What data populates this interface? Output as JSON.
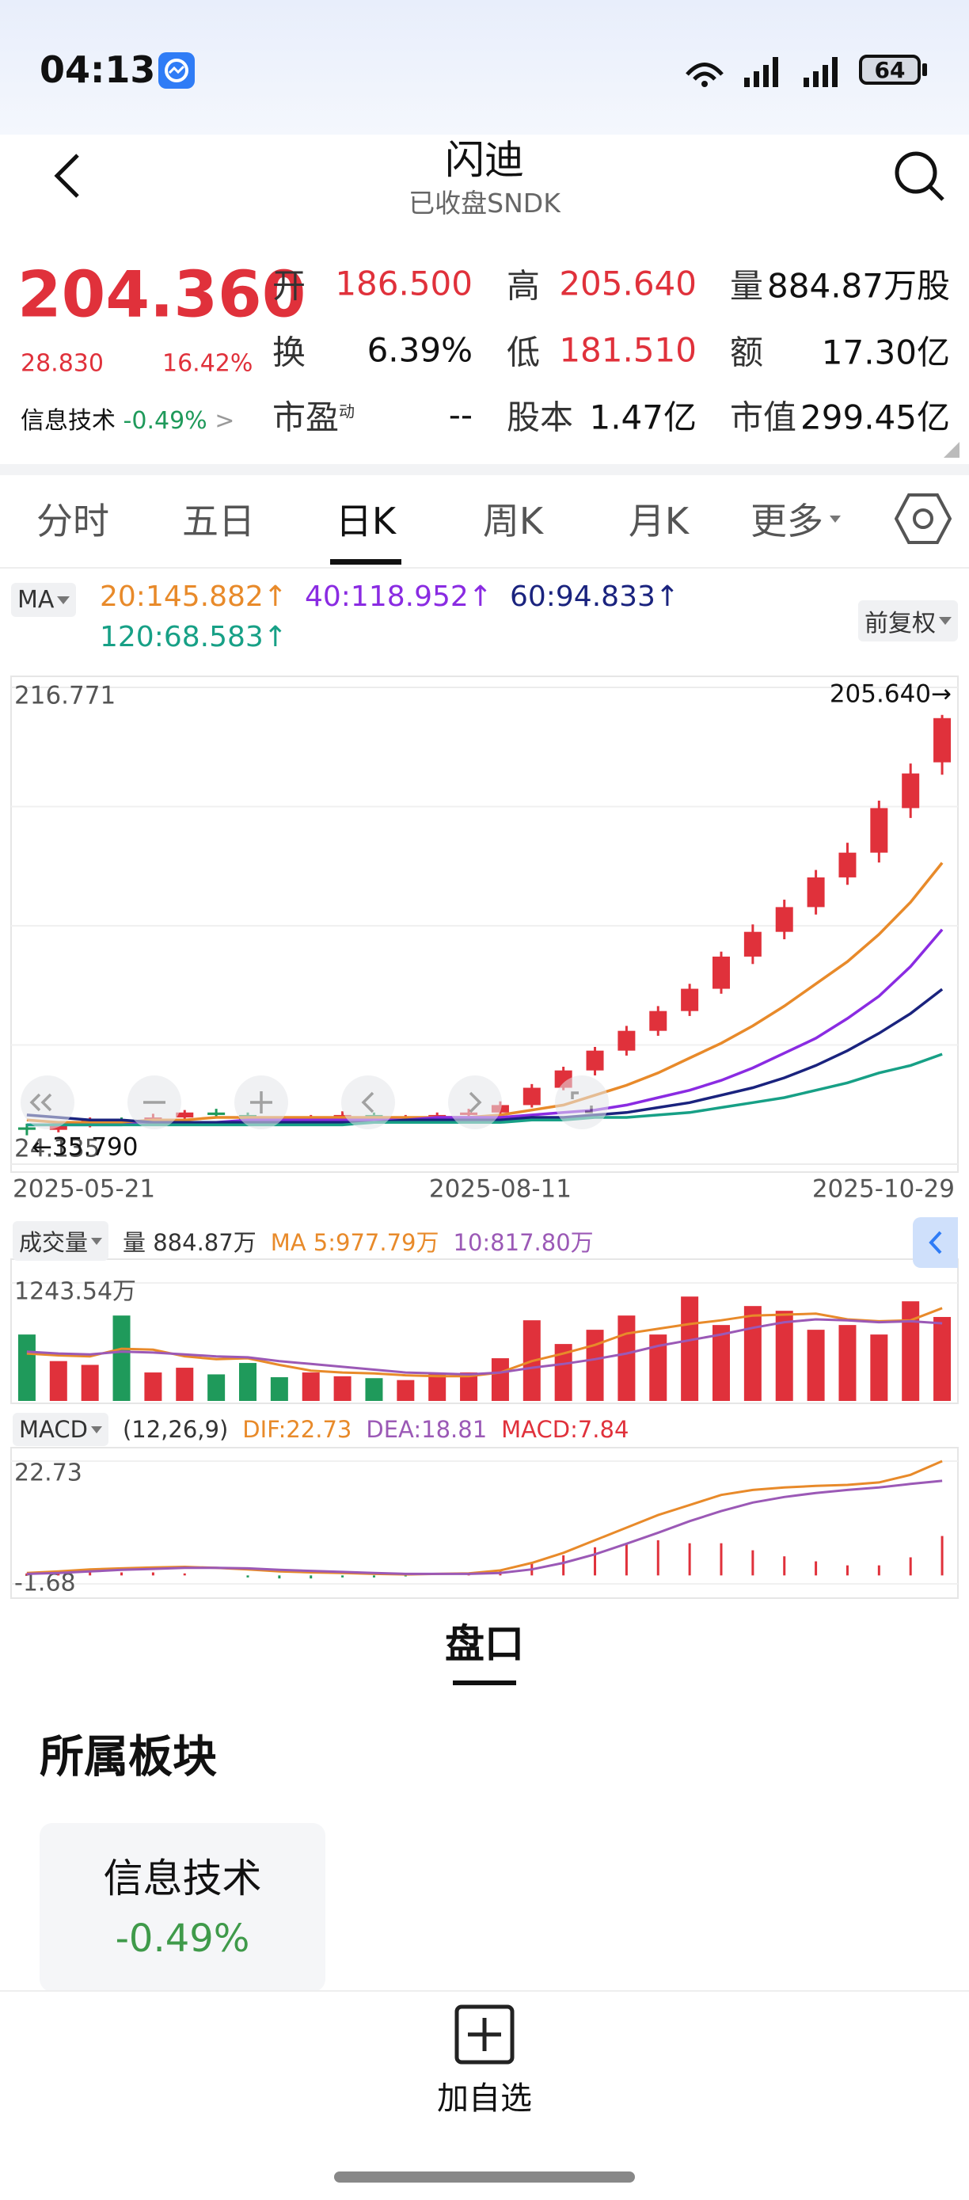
{
  "status": {
    "time": "04:13",
    "battery": "64"
  },
  "header": {
    "title": "闪迪",
    "subtitle": "已收盘SNDK"
  },
  "quote": {
    "price": "204.360",
    "change": "28.830",
    "change_pct": "16.42%",
    "stats": [
      [
        {
          "label": "开",
          "value": "186.500",
          "color": "#e0313b"
        },
        {
          "label": "高",
          "value": "205.640",
          "color": "#e0313b"
        },
        {
          "label": "量",
          "value": "884.87万股",
          "color": "#111111"
        }
      ],
      [
        {
          "label": "换",
          "value": "6.39%",
          "color": "#111111"
        },
        {
          "label": "低",
          "value": "181.510",
          "color": "#e0313b"
        },
        {
          "label": "额",
          "value": "17.30亿",
          "color": "#111111"
        }
      ],
      [
        {
          "label": "市盈",
          "sup": "动",
          "value": "--",
          "color": "#111111"
        },
        {
          "label": "股本",
          "value": "1.47亿",
          "color": "#111111"
        },
        {
          "label": "市值",
          "value": "299.45亿",
          "color": "#111111"
        }
      ]
    ]
  },
  "sector_link": {
    "name": "信息技术",
    "pct": "-0.49%"
  },
  "tabs": {
    "items": [
      "分时",
      "五日",
      "日K",
      "周K",
      "月K",
      "更多"
    ],
    "selected": 2
  },
  "kline": {
    "ma_label": "MA",
    "adjust": "前复权",
    "up_color": "#e0313b",
    "down_color": "#1f9a5b",
    "ylim": [
      24.135,
      216.771
    ],
    "yticks": [
      24.135,
      216.771
    ],
    "high_marker": "205.640→",
    "low_marker": "←35.790",
    "categories": [
      "2025-05-21",
      null,
      null,
      null,
      null,
      null,
      null,
      null,
      null,
      null,
      null,
      null,
      null,
      null,
      null,
      "2025-08-11",
      null,
      null,
      null,
      null,
      null,
      null,
      null,
      null,
      null,
      null,
      null,
      null,
      null,
      "2025-10-29"
    ],
    "candles": {
      "open": [
        39,
        38,
        40,
        42,
        41,
        43,
        45,
        44,
        42,
        41,
        43,
        44,
        42,
        43,
        44,
        45,
        48,
        55,
        62,
        70,
        78,
        86,
        95,
        108,
        118,
        128,
        140,
        150,
        168,
        186.5
      ],
      "close": [
        38,
        40,
        42,
        41,
        43,
        45,
        44,
        42,
        41,
        43,
        44,
        42,
        43,
        44,
        45,
        48,
        55,
        62,
        70,
        78,
        86,
        95,
        108,
        118,
        128,
        140,
        150,
        168,
        182,
        204.36
      ],
      "high": [
        40.5,
        41,
        43,
        43,
        44.5,
        46,
        46.5,
        45,
        43,
        44,
        45.5,
        45,
        44,
        45,
        46.5,
        49.5,
        56.5,
        63.5,
        71.5,
        80,
        88,
        97,
        110,
        121,
        131,
        143,
        154,
        171,
        186,
        205.64
      ],
      "low": [
        35.79,
        37,
        39,
        40,
        40,
        42,
        43,
        41,
        40,
        40,
        42,
        41,
        41,
        42,
        43,
        44,
        47,
        54,
        60,
        68,
        76,
        84,
        93,
        105,
        115,
        125,
        137,
        146,
        164,
        181.51
      ]
    },
    "ma": [
      {
        "label": "20:145.882↑",
        "color": "#e88a2a",
        "values": [
          42,
          41,
          41,
          41,
          42,
          42,
          43,
          43,
          43,
          43,
          43,
          43,
          43,
          43,
          43,
          44,
          46,
          48,
          52,
          56,
          61,
          67,
          73,
          80,
          88,
          97,
          106,
          117,
          130,
          145.882
        ]
      },
      {
        "label": "40:118.952↑",
        "color": "#8a2be2",
        "values": [
          40,
          40,
          40,
          40,
          41,
          41,
          41,
          42,
          42,
          42,
          42,
          42,
          42,
          43,
          43,
          43,
          44,
          45,
          46,
          48,
          51,
          54,
          58,
          63,
          69,
          75,
          83,
          92,
          104,
          118.952
        ]
      },
      {
        "label": "60:94.833↑",
        "color": "#1a237e",
        "values": [
          44,
          43,
          42,
          42,
          41,
          41,
          41,
          41,
          41,
          41,
          41,
          41,
          42,
          42,
          42,
          42,
          43,
          43,
          44,
          45,
          47,
          49,
          52,
          55,
          59,
          64,
          70,
          77,
          85,
          94.833
        ]
      },
      {
        "label": "120:68.583↑",
        "color": "#17a086",
        "values": [
          40,
          40,
          40,
          40,
          40,
          40,
          40,
          40,
          40,
          40,
          40,
          41,
          41,
          41,
          41,
          41,
          42,
          42,
          43,
          43,
          44,
          45,
          47,
          49,
          51,
          54,
          57,
          61,
          64,
          68.583
        ]
      }
    ]
  },
  "volume": {
    "label": "成交量",
    "current": "量 884.87万",
    "ylim": [
      0,
      1243.54
    ],
    "yticks": [
      {
        "value": 1243.54,
        "label": "1243.54万"
      }
    ],
    "values": [
      700,
      420,
      380,
      900,
      300,
      350,
      280,
      400,
      250,
      300,
      260,
      240,
      220,
      280,
      300,
      450,
      850,
      600,
      750,
      900,
      700,
      1100,
      800,
      1000,
      950,
      750,
      800,
      700,
      1050,
      884.87
    ],
    "ma": [
      {
        "label": "MA 5:977.79万",
        "color": "#e88a2a",
        "values": [
          500,
          480,
          470,
          550,
          540,
          470,
          440,
          450,
          380,
          320,
          300,
          290,
          270,
          260,
          260,
          300,
          420,
          500,
          590,
          710,
          760,
          810,
          850,
          900,
          910,
          920,
          860,
          840,
          850,
          977.79
        ]
      },
      {
        "label": "10:817.80万",
        "color": "#9b59b6",
        "values": [
          520,
          500,
          490,
          520,
          510,
          490,
          470,
          460,
          420,
          390,
          360,
          330,
          300,
          290,
          280,
          300,
          350,
          390,
          440,
          500,
          580,
          640,
          700,
          770,
          830,
          860,
          850,
          830,
          840,
          817.8
        ]
      }
    ]
  },
  "macd": {
    "label": "MACD",
    "params": "(12,26,9)",
    "ylim": [
      -1.68,
      22.73
    ],
    "yticks": [
      22.73,
      -1.68
    ],
    "lines": [
      {
        "label": "DIF:22.73",
        "color": "#e88a2a",
        "values": [
          0.5,
          0.8,
          1.2,
          1.4,
          1.6,
          1.7,
          1.5,
          1.2,
          0.8,
          0.6,
          0.5,
          0.3,
          0.2,
          0.3,
          0.4,
          1.0,
          2.5,
          4.5,
          7,
          9.5,
          12,
          14,
          16,
          17,
          17.5,
          17.8,
          18,
          18.5,
          20,
          22.73
        ]
      },
      {
        "label": "DEA:18.81",
        "color": "#9b59b6",
        "values": [
          0.3,
          0.5,
          0.8,
          1.1,
          1.3,
          1.5,
          1.5,
          1.4,
          1.1,
          0.9,
          0.7,
          0.5,
          0.3,
          0.3,
          0.3,
          0.5,
          1.2,
          2.5,
          4.2,
          6.3,
          8.5,
          10.8,
          12.8,
          14.5,
          15.6,
          16.4,
          17,
          17.5,
          18.2,
          18.81
        ]
      }
    ],
    "hist": {
      "label": "MACD:7.84",
      "color": "#e0313b",
      "negative_color": "#1f9a5b",
      "values": [
        0.4,
        0.6,
        0.8,
        0.6,
        0.6,
        0.4,
        0,
        -0.4,
        -0.6,
        -0.6,
        -0.4,
        -0.4,
        -0.2,
        0,
        0.2,
        1,
        2.6,
        4,
        5.6,
        6.4,
        7,
        6.4,
        6.4,
        5,
        3.8,
        2.8,
        2,
        2,
        3.6,
        7.84
      ]
    }
  },
  "panel": {
    "tab": "盘口",
    "section": "所属板块",
    "card_name": "信息技术",
    "card_pct": "-0.49%"
  },
  "action": "加自选"
}
